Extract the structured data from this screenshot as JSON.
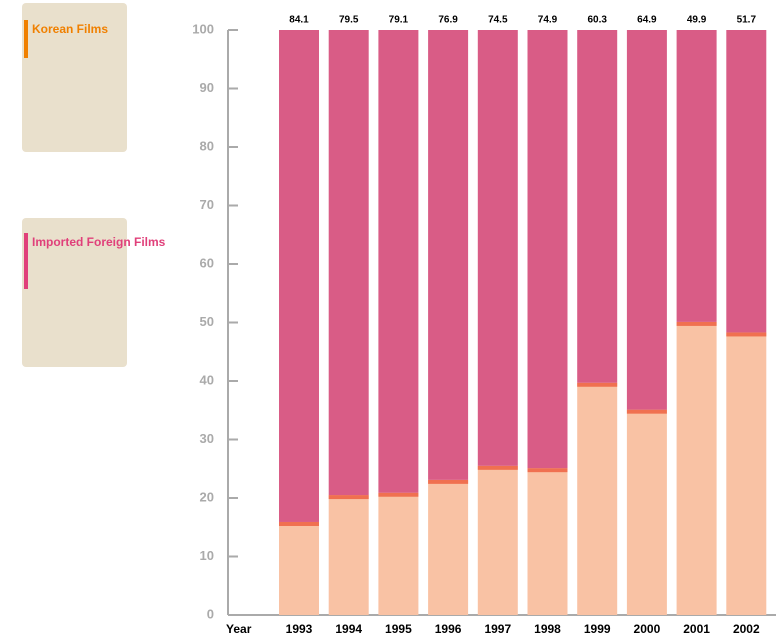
{
  "chart_data": {
    "type": "stacked_bar",
    "x_label": "Year",
    "categories": [
      "1993",
      "1994",
      "1995",
      "1996",
      "1997",
      "1998",
      "1999",
      "2000",
      "2001",
      "2002"
    ],
    "series": [
      {
        "name": "Korean Films",
        "color": "#f9c2a4",
        "values": [
          15.9,
          20.5,
          20.9,
          23.1,
          25.5,
          25.1,
          39.7,
          35.1,
          50.1,
          48.3
        ]
      },
      {
        "name": "Imported Foreign Films",
        "color": "#d95c86",
        "values": [
          84.1,
          79.5,
          79.1,
          76.9,
          74.5,
          74.9,
          60.3,
          64.9,
          49.9,
          51.7
        ]
      }
    ],
    "ylim": [
      0,
      100
    ],
    "yticks": [
      0,
      10,
      20,
      30,
      40,
      50,
      60,
      70,
      80,
      90,
      100
    ],
    "grid": false
  }
}
